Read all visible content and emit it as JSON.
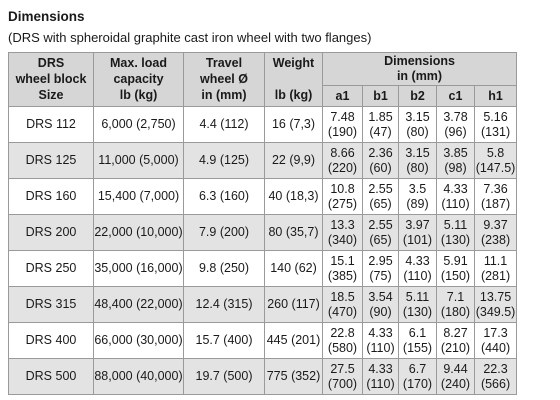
{
  "header": {
    "title": "Dimensions",
    "subtitle": "(DRS with spheroidal graphite cast iron wheel with two flanges)"
  },
  "table": {
    "columns": [
      {
        "lines": [
          "DRS",
          "wheel block",
          "Size"
        ]
      },
      {
        "lines": [
          "Max. load",
          "capacity",
          "lb (kg)"
        ]
      },
      {
        "lines": [
          "Travel",
          "wheel Ø",
          "in (mm)"
        ]
      },
      {
        "lines": [
          "Weight",
          "",
          "lb (kg)"
        ]
      }
    ],
    "group": {
      "lines": [
        "Dimensions",
        "in (mm)"
      ],
      "subcolumns": [
        "a1",
        "b1",
        "b2",
        "c1",
        "h1"
      ]
    },
    "rows": [
      {
        "size": "DRS 112",
        "load": "6,000 (2,750)",
        "travel": "4.4 (112)",
        "weight": "16 (7,3)",
        "dims": [
          [
            "7.48",
            "(190)"
          ],
          [
            "1.85",
            "(47)"
          ],
          [
            "3.15",
            "(80)"
          ],
          [
            "3.78",
            "(96)"
          ],
          [
            "5.16",
            "(131)"
          ]
        ]
      },
      {
        "size": "DRS 125",
        "load": "11,000 (5,000)",
        "travel": "4.9 (125)",
        "weight": "22 (9,9)",
        "dims": [
          [
            "8.66",
            "(220)"
          ],
          [
            "2.36",
            "(60)"
          ],
          [
            "3.15",
            "(80)"
          ],
          [
            "3.85",
            "(98)"
          ],
          [
            "5.8",
            "(147.5)"
          ]
        ]
      },
      {
        "size": "DRS 160",
        "load": "15,400 (7,000)",
        "travel": "6.3 (160)",
        "weight": "40 (18,3)",
        "dims": [
          [
            "10.8",
            "(275)"
          ],
          [
            "2.55",
            "(65)"
          ],
          [
            "3.5",
            "(89)"
          ],
          [
            "4.33",
            "(110)"
          ],
          [
            "7.36",
            "(187)"
          ]
        ]
      },
      {
        "size": "DRS 200",
        "load": "22,000 (10,000)",
        "travel": "7.9 (200)",
        "weight": "80 (35,7)",
        "dims": [
          [
            "13.3",
            "(340)"
          ],
          [
            "2.55",
            "(65)"
          ],
          [
            "3.97",
            "(101)"
          ],
          [
            "5.11",
            "(130)"
          ],
          [
            "9.37",
            "(238)"
          ]
        ]
      },
      {
        "size": "DRS 250",
        "load": "35,000 (16,000)",
        "travel": "9.8 (250)",
        "weight": "140 (62)",
        "dims": [
          [
            "15.1",
            "(385)"
          ],
          [
            "2.95",
            "(75)"
          ],
          [
            "4.33",
            "(110)"
          ],
          [
            "5.91",
            "(150)"
          ],
          [
            "11.1",
            "(281)"
          ]
        ]
      },
      {
        "size": "DRS 315",
        "load": "48,400 (22,000)",
        "travel": "12.4 (315)",
        "weight": "260 (117)",
        "dims": [
          [
            "18.5",
            "(470)"
          ],
          [
            "3.54",
            "(90)"
          ],
          [
            "5.11",
            "(130)"
          ],
          [
            "7.1",
            "(180)"
          ],
          [
            "13.75",
            "(349.5)"
          ]
        ]
      },
      {
        "size": "DRS 400",
        "load": "66,000 (30,000)",
        "travel": "15.7 (400)",
        "weight": "445 (201)",
        "dims": [
          [
            "22.8",
            "(580)"
          ],
          [
            "4.33",
            "(110)"
          ],
          [
            "6.1",
            "(155)"
          ],
          [
            "8.27",
            "(210)"
          ],
          [
            "17.3",
            "(440)"
          ]
        ]
      },
      {
        "size": "DRS 500",
        "load": "88,000 (40,000)",
        "travel": "19.7 (500)",
        "weight": "775 (352)",
        "dims": [
          [
            "27.5",
            "(700)"
          ],
          [
            "4.33",
            "(110)"
          ],
          [
            "6.7",
            "(170)"
          ],
          [
            "9.44",
            "(240)"
          ],
          [
            "22.3",
            "(566)"
          ]
        ]
      }
    ]
  }
}
